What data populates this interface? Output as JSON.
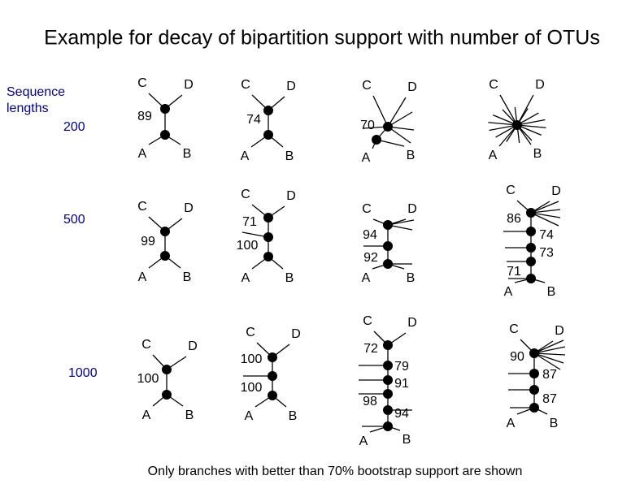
{
  "title": "Example for decay of bipartition support with number of OTUs",
  "row_header": [
    "Sequence",
    "lengths"
  ],
  "rows": [
    {
      "length": 200,
      "trees": [
        {
          "leaves": [
            "C",
            "D",
            "A",
            "B"
          ],
          "support": [
            89
          ]
        },
        {
          "leaves": [
            "C",
            "D",
            "A",
            "B"
          ],
          "support": [
            74
          ]
        },
        {
          "leaves": [
            "C",
            "D",
            "A",
            "B"
          ],
          "support": [
            70
          ]
        },
        {
          "leaves": [
            "C",
            "D",
            "A",
            "B"
          ],
          "support": []
        }
      ]
    },
    {
      "length": 500,
      "trees": [
        {
          "leaves": [
            "C",
            "D",
            "A",
            "B"
          ],
          "support": [
            99
          ]
        },
        {
          "leaves": [
            "C",
            "D",
            "A",
            "B"
          ],
          "support": [
            71,
            100
          ]
        },
        {
          "leaves": [
            "C",
            "D",
            "A",
            "B"
          ],
          "support": [
            94,
            92
          ]
        },
        {
          "leaves": [
            "C",
            "D",
            "A",
            "B"
          ],
          "support": [
            86,
            74,
            73,
            71
          ]
        }
      ]
    },
    {
      "length": 1000,
      "trees": [
        {
          "leaves": [
            "C",
            "D",
            "A",
            "B"
          ],
          "support": [
            100
          ]
        },
        {
          "leaves": [
            "C",
            "D",
            "A",
            "B"
          ],
          "support": [
            100,
            100
          ]
        },
        {
          "leaves": [
            "C",
            "D",
            "A",
            "B"
          ],
          "support": [
            72,
            79,
            91,
            98,
            94
          ]
        },
        {
          "leaves": [
            "C",
            "D",
            "A",
            "B"
          ],
          "support": [
            90,
            87,
            87
          ]
        }
      ]
    }
  ],
  "footnote": "Only branches with better than 70% bootstrap support are shown"
}
